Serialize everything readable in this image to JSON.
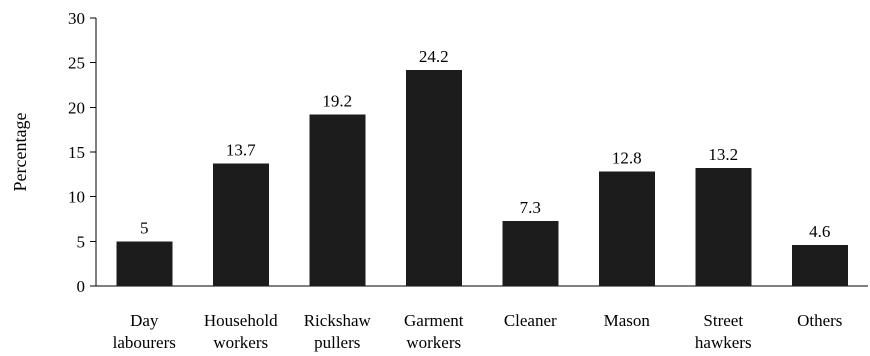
{
  "chart_data": {
    "type": "bar",
    "categories": [
      [
        "Day",
        "labourers"
      ],
      [
        "Household",
        "workers"
      ],
      [
        "Rickshaw",
        "pullers"
      ],
      [
        "Garment",
        "workers"
      ],
      [
        "Cleaner"
      ],
      [
        "Mason"
      ],
      [
        "Street",
        "hawkers"
      ],
      [
        "Others"
      ]
    ],
    "values": [
      5,
      13.7,
      19.2,
      24.2,
      7.3,
      12.8,
      13.2,
      4.6
    ],
    "data_labels": [
      "5",
      "13.7",
      "19.2",
      "24.2",
      "7.3",
      "12.8",
      "13.2",
      "4.6"
    ],
    "ylabel": "Percentage",
    "ylim": [
      0,
      30
    ],
    "yticks": [
      0,
      5,
      10,
      15,
      20,
      25,
      30
    ],
    "ytick_labels": [
      "0",
      "5",
      "10",
      "15",
      "20",
      "25",
      "30"
    ],
    "grid": false,
    "legend": "none",
    "bar_color": "#1c1c1c"
  }
}
